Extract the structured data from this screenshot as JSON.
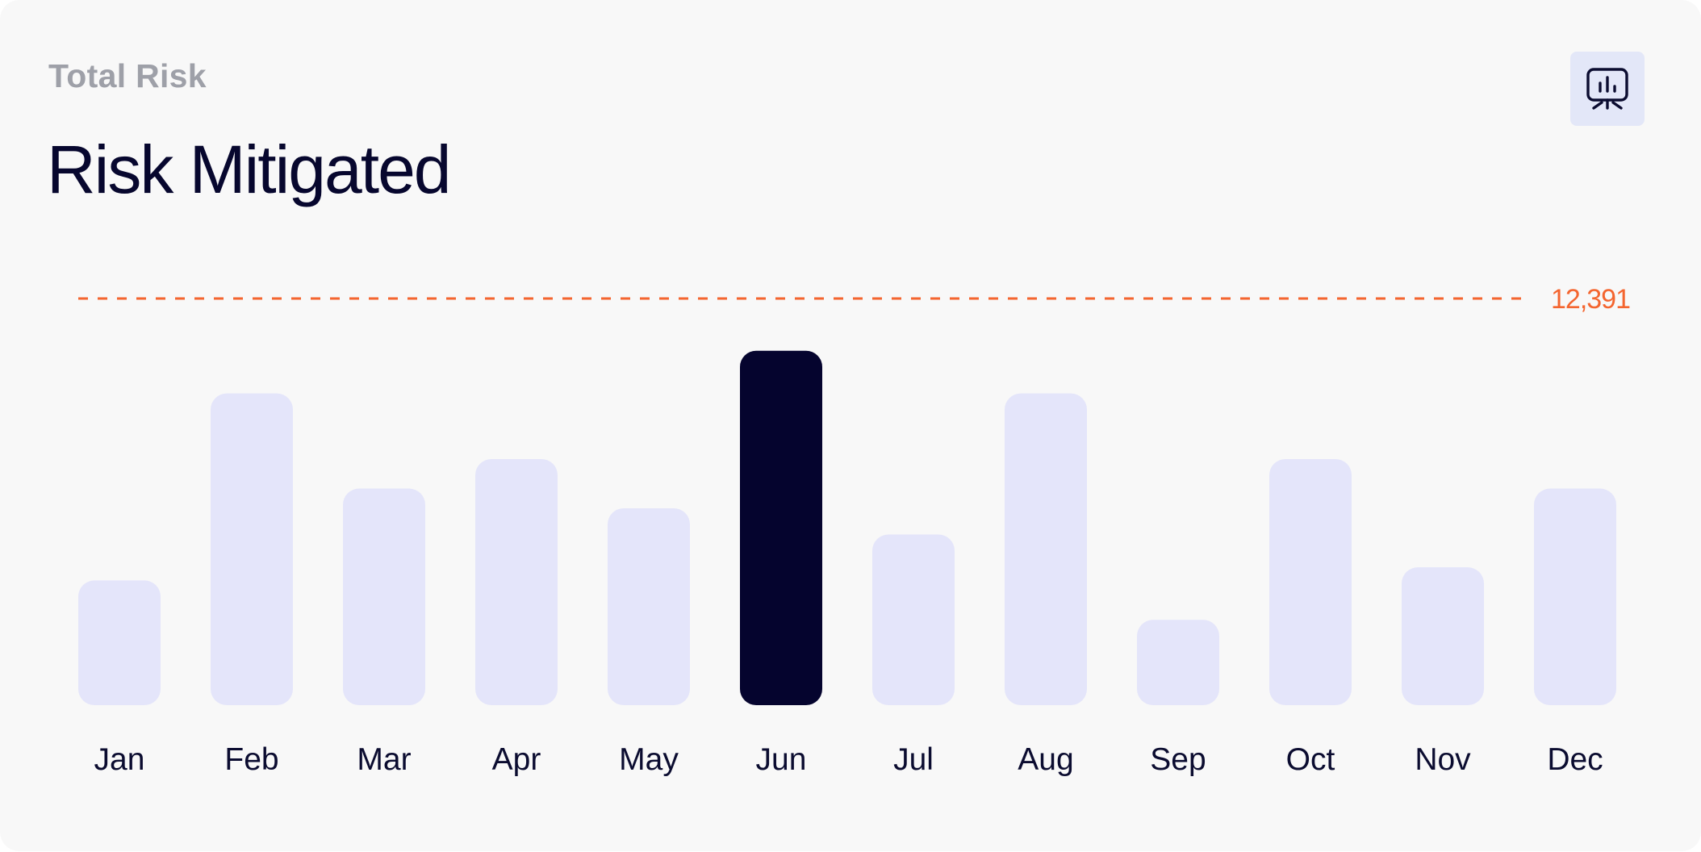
{
  "card": {
    "subtitle": "Total Risk",
    "title": "Risk Mitigated",
    "action_icon": "presentation-chart-icon"
  },
  "colors": {
    "bar": "#e4e5fa",
    "bar_highlight": "#05042e",
    "reference_line": "#f4652f",
    "text_primary": "#07072e",
    "text_secondary": "#9ea0a8"
  },
  "chart_data": {
    "type": "bar",
    "title": "Risk Mitigated",
    "categories": [
      "Jan",
      "Feb",
      "Mar",
      "Apr",
      "May",
      "Jun",
      "Jul",
      "Aug",
      "Sep",
      "Oct",
      "Nov",
      "Dec"
    ],
    "values": [
      3800,
      9500,
      6600,
      7500,
      6000,
      10800,
      5200,
      9500,
      2600,
      7500,
      4200,
      6600
    ],
    "highlight_index": 5,
    "reference_line": {
      "value": 12391,
      "label": "12,391",
      "style": "dashed"
    },
    "ylim": [
      0,
      12391
    ],
    "grid": false,
    "legend": "none"
  }
}
